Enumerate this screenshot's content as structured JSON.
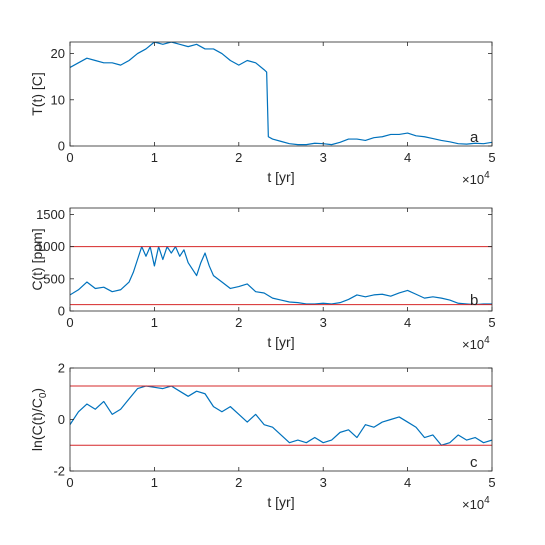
{
  "chart_data": [
    {
      "type": "line",
      "panel": "a",
      "xlabel": "t [yr]",
      "ylabel": "T(t) [C]",
      "xlim": [
        0,
        50000
      ],
      "ylim": [
        0,
        22.5
      ],
      "xticks": [
        0,
        10000,
        20000,
        30000,
        40000,
        50000
      ],
      "xtick_labels": [
        "0",
        "1",
        "2",
        "3",
        "4",
        "5"
      ],
      "x_exponent": {
        "base": "×10",
        "power": "4"
      },
      "yticks": [
        0,
        10,
        20
      ],
      "ytick_labels": [
        "0",
        "10",
        "20"
      ],
      "line_color": "#0072BD",
      "series": [
        {
          "x": [
            0,
            1000,
            2000,
            3000,
            4000,
            5000,
            6000,
            7000,
            8000,
            9000,
            10000,
            11000,
            12000,
            13000,
            14000,
            15000,
            16000,
            17000,
            18000,
            19000,
            20000,
            21000,
            22000,
            23000,
            23300,
            23500,
            24000,
            25000,
            26000,
            27000,
            28000,
            29000,
            30000,
            31000,
            32000,
            33000,
            34000,
            35000,
            36000,
            37000,
            38000,
            39000,
            40000,
            41000,
            42000,
            43000,
            44000,
            45000,
            46000,
            47000,
            48000,
            49000,
            50000
          ],
          "values": [
            17,
            18,
            19,
            18.5,
            18,
            18,
            17.5,
            18.5,
            20,
            21,
            22.5,
            22,
            22.5,
            22,
            21.5,
            22,
            21,
            21,
            20,
            18.5,
            17.5,
            18.5,
            18,
            16.5,
            16,
            2,
            1.5,
            1,
            0.5,
            0.3,
            0.3,
            0.6,
            0.5,
            0.3,
            0.8,
            1.5,
            1.5,
            1.2,
            1.8,
            2,
            2.5,
            2.5,
            2.8,
            2.2,
            2,
            1.6,
            1.2,
            0.9,
            0.5,
            0.4,
            0.6,
            0.5,
            0.8
          ]
        }
      ],
      "hlines": []
    },
    {
      "type": "line",
      "panel": "b",
      "xlabel": "t [yr]",
      "ylabel": "C(t) [ppm]",
      "xlim": [
        0,
        50000
      ],
      "ylim": [
        0,
        1600
      ],
      "xticks": [
        0,
        10000,
        20000,
        30000,
        40000,
        50000
      ],
      "xtick_labels": [
        "0",
        "1",
        "2",
        "3",
        "4",
        "5"
      ],
      "x_exponent": {
        "base": "×10",
        "power": "4"
      },
      "yticks": [
        0,
        500,
        1000,
        1500
      ],
      "ytick_labels": [
        "0",
        "500",
        "1000",
        "1500"
      ],
      "line_color": "#0072BD",
      "hline_color": "#D62728",
      "series": [
        {
          "x": [
            0,
            1000,
            2000,
            3000,
            4000,
            5000,
            6000,
            7000,
            7500,
            8000,
            8500,
            9000,
            9500,
            10000,
            10500,
            11000,
            11500,
            12000,
            12500,
            13000,
            13500,
            14000,
            15000,
            15500,
            16000,
            16500,
            17000,
            18000,
            19000,
            20000,
            21000,
            22000,
            23000,
            24000,
            25000,
            26000,
            27000,
            28000,
            29000,
            30000,
            31000,
            32000,
            33000,
            34000,
            35000,
            36000,
            37000,
            38000,
            39000,
            40000,
            41000,
            42000,
            43000,
            44000,
            45000,
            46000,
            47000,
            48000,
            49000,
            50000
          ],
          "values": [
            250,
            330,
            450,
            350,
            370,
            300,
            330,
            450,
            600,
            800,
            1000,
            850,
            1000,
            700,
            1000,
            800,
            1000,
            900,
            1000,
            850,
            950,
            750,
            550,
            750,
            900,
            700,
            550,
            450,
            350,
            380,
            420,
            300,
            280,
            200,
            170,
            140,
            130,
            110,
            110,
            120,
            110,
            130,
            180,
            250,
            220,
            250,
            260,
            230,
            280,
            320,
            260,
            200,
            220,
            200,
            170,
            120,
            110,
            100,
            110,
            110
          ]
        }
      ],
      "hlines": [
        1000,
        100
      ]
    },
    {
      "type": "line",
      "panel": "c",
      "xlabel": "t [yr]",
      "ylabel": "ln(C(t)/C",
      "ylabel_subscript": "0",
      "ylabel_suffix": ")",
      "xlim": [
        0,
        50000
      ],
      "ylim": [
        -2,
        2
      ],
      "xticks": [
        0,
        10000,
        20000,
        30000,
        40000,
        50000
      ],
      "xtick_labels": [
        "0",
        "1",
        "2",
        "3",
        "4",
        "5"
      ],
      "x_exponent": {
        "base": "×10",
        "power": "4"
      },
      "yticks": [
        -2,
        0,
        2
      ],
      "ytick_labels": [
        "-2",
        "0",
        "2"
      ],
      "line_color": "#0072BD",
      "hline_color": "#D62728",
      "series": [
        {
          "x": [
            0,
            1000,
            2000,
            3000,
            4000,
            5000,
            6000,
            7000,
            8000,
            9000,
            10000,
            11000,
            12000,
            13000,
            14000,
            15000,
            16000,
            17000,
            18000,
            19000,
            20000,
            21000,
            22000,
            23000,
            24000,
            25000,
            26000,
            27000,
            28000,
            29000,
            30000,
            31000,
            32000,
            33000,
            34000,
            35000,
            36000,
            37000,
            38000,
            39000,
            40000,
            41000,
            42000,
            43000,
            44000,
            45000,
            46000,
            47000,
            48000,
            49000,
            50000
          ],
          "values": [
            -0.2,
            0.3,
            0.6,
            0.4,
            0.7,
            0.2,
            0.4,
            0.8,
            1.2,
            1.3,
            1.25,
            1.2,
            1.3,
            1.1,
            0.9,
            1.1,
            1.0,
            0.5,
            0.3,
            0.5,
            0.2,
            -0.1,
            0.2,
            -0.2,
            -0.3,
            -0.6,
            -0.9,
            -0.8,
            -0.9,
            -0.7,
            -0.9,
            -0.8,
            -0.5,
            -0.4,
            -0.7,
            -0.2,
            -0.3,
            -0.1,
            0.0,
            0.1,
            -0.1,
            -0.3,
            -0.7,
            -0.6,
            -1.0,
            -0.9,
            -0.6,
            -0.8,
            -0.7,
            -0.9,
            -0.8
          ]
        }
      ],
      "hlines": [
        1.3,
        -1.0
      ]
    }
  ]
}
